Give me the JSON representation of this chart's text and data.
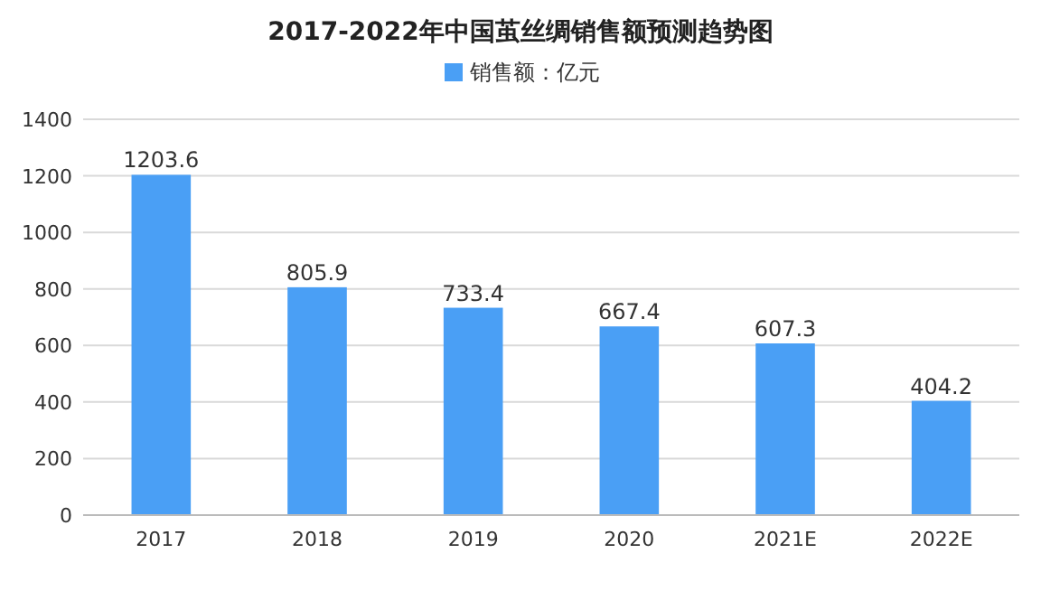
{
  "chart_data": {
    "type": "bar",
    "title": "2017-2022年中国茧丝绸销售额预测趋势图",
    "categories": [
      "2017",
      "2018",
      "2019",
      "2020",
      "2021E",
      "2022E"
    ],
    "series": [
      {
        "name": "销售额：亿元",
        "color": "#4a9ff5",
        "values": [
          1203.6,
          805.9,
          733.4,
          667.4,
          607.3,
          404.2
        ]
      }
    ],
    "ylim": [
      0,
      1400
    ],
    "yticks": [
      0,
      200,
      400,
      600,
      800,
      1000,
      1200,
      1400
    ],
    "grid": "y",
    "legend": "top",
    "data_labels": true
  }
}
